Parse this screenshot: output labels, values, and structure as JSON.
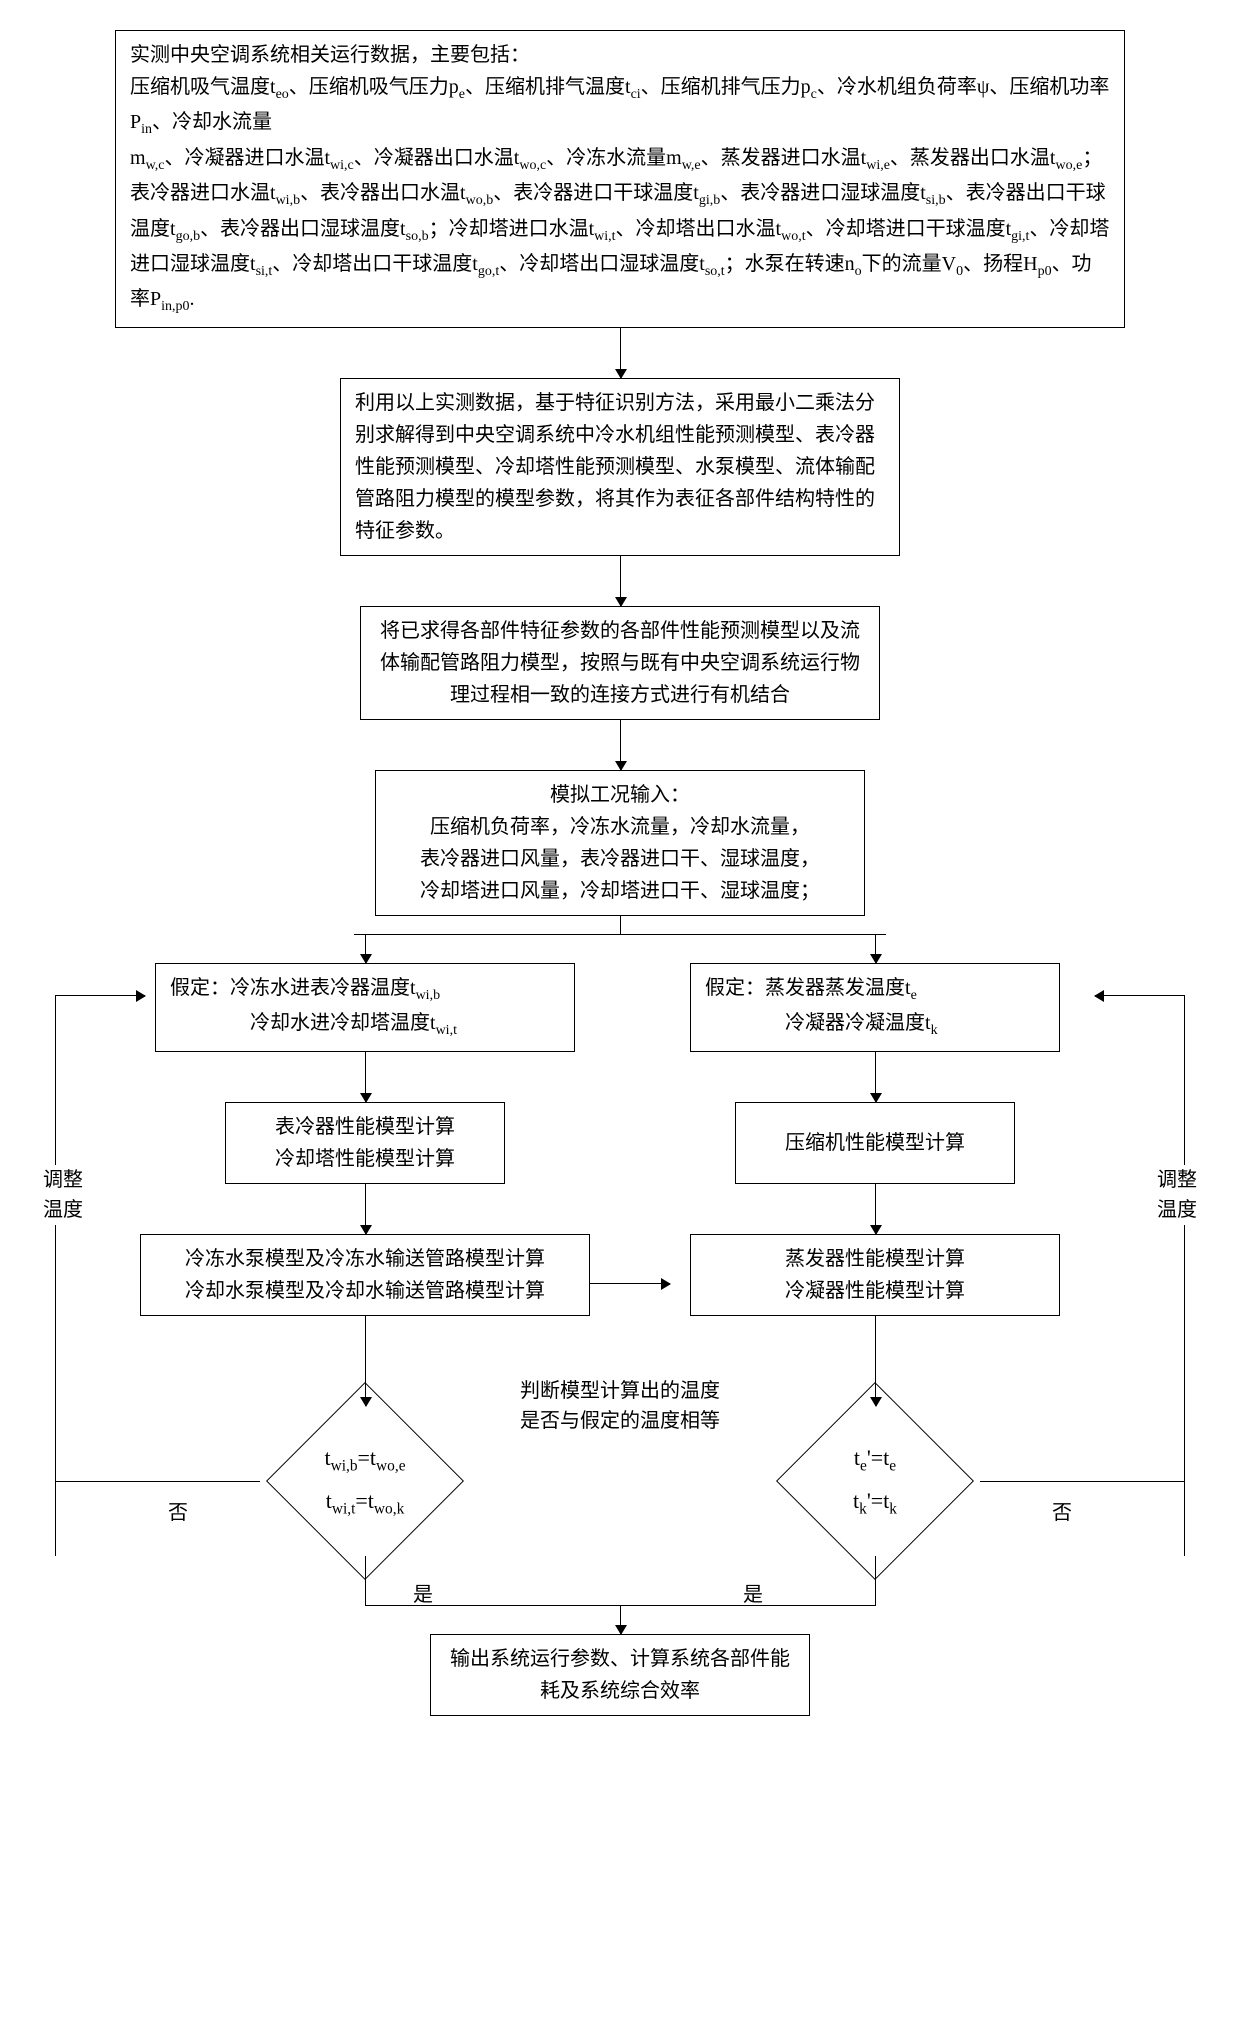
{
  "type": "flowchart",
  "colors": {
    "line": "#000000",
    "bg": "#ffffff",
    "text": "#000000"
  },
  "font": {
    "family": "SimSun",
    "size_body": 20,
    "size_formula": 22
  },
  "node1": {
    "line1": "实测中央空调系统相关运行数据，主要包括：",
    "line2": "压缩机吸气温度t<sub>eo</sub>、压缩机吸气压力p<sub>e</sub>、压缩机排气温度t<sub>ci</sub>、压缩机排气压力p<sub>c</sub>、冷水机组负荷率ψ、压缩机功率P<sub>in</sub>、冷却水流量",
    "line3": "m<sub>w,c</sub>、冷凝器进口水温t<sub>wi,c</sub>、冷凝器出口水温t<sub>wo,c</sub>、冷冻水流量m<sub>w,e</sub>、蒸发器进口水温t<sub>wi,e</sub>、蒸发器出口水温t<sub>wo,e</sub>；表冷器进口水温t<sub>wi,b</sub>、表冷器出口水温t<sub>wo,b</sub>、表冷器进口干球温度t<sub>gi,b</sub>、表冷器进口湿球温度t<sub>si,b</sub>、表冷器出口干球温度t<sub>go,b</sub>、表冷器出口湿球温度t<sub>so,b</sub>；冷却塔进口水温t<sub>wi,t</sub>、冷却塔出口水温t<sub>wo,t</sub>、冷却塔进口干球温度t<sub>gi,t</sub>、冷却塔进口湿球温度t<sub>si,t</sub>、冷却塔出口干球温度t<sub>go,t</sub>、冷却塔出口湿球温度t<sub>so,t</sub>；水泵在转速n<sub>o</sub>下的流量V<sub>0</sub>、扬程H<sub>p0</sub>、功率P<sub>in,p0</sub>."
  },
  "node2": "利用以上实测数据，基于特征识别方法，采用最小二乘法分别求解得到中央空调系统中冷水机组性能预测模型、表冷器性能预测模型、冷却塔性能预测模型、水泵模型、流体输配管路阻力模型的模型参数，将其作为表征各部件结构特性的特征参数。",
  "node3": "将已求得各部件特征参数的各部件性能预测模型以及流体输配管路阻力模型，按照与既有中央空调系统运行物理过程相一致的连接方式进行有机结合",
  "node4": {
    "title": "模拟工况输入：",
    "l1": "压缩机负荷率，冷冻水流量，冷却水流量，",
    "l2": "表冷器进口风量，表冷器进口干、湿球温度，",
    "l3": "冷却塔进口风量，冷却塔进口干、湿球温度；"
  },
  "left": {
    "assume_l1": "假定：冷冻水进表冷器温度t<sub>wi,b</sub>",
    "assume_l2": "冷却水进冷却塔温度t<sub>wi,t</sub>",
    "calc1_l1": "表冷器性能模型计算",
    "calc1_l2": "冷却塔性能模型计算",
    "calc2_l1": "冷冻水泵模型及冷冻水输送管路模型计算",
    "calc2_l2": "冷却水泵模型及冷却水输送管路模型计算",
    "cond_l1": "t<sub>wi,b</sub>=t<sub>wo,e</sub>",
    "cond_l2": "t<sub>wi,t</sub>=t<sub>wo,k</sub>"
  },
  "right": {
    "assume_l1": "假定：蒸发器蒸发温度t<sub>e</sub>",
    "assume_l2": "冷凝器冷凝温度t<sub>k</sub>",
    "calc1": "压缩机性能模型计算",
    "calc2_l1": "蒸发器性能模型计算",
    "calc2_l2": "冷凝器性能模型计算",
    "cond_l1": "t<sub>e</sub>'=t<sub>e</sub>",
    "cond_l2": "t<sub>k</sub>'=t<sub>k</sub>"
  },
  "mid_judge": "判断模型计算出的温度是否与假定的温度相等",
  "labels": {
    "yes": "是",
    "no": "否",
    "adjust1": "调整",
    "adjust2": "温度"
  },
  "output": "输出系统运行参数、计算系统各部件能耗及系统综合效率",
  "line_width": 1.5
}
